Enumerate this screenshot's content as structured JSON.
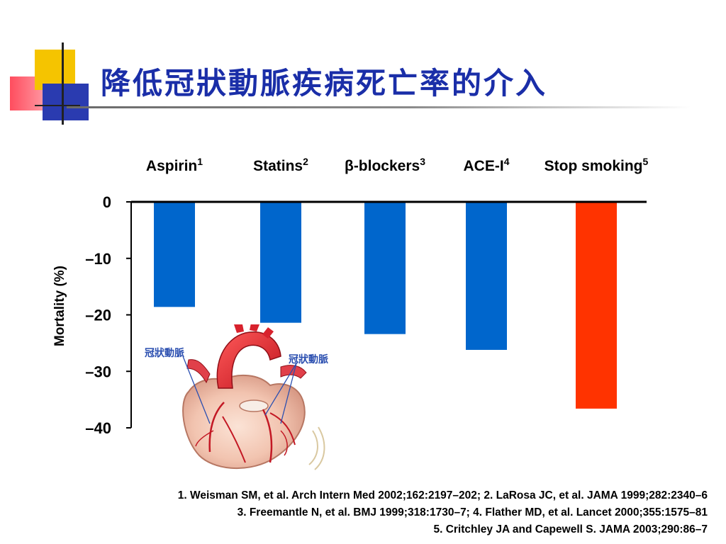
{
  "slide": {
    "title": "降低冠狀動脈疾病死亡率的介入"
  },
  "colors": {
    "title": "#1a2ea8",
    "bar_primary": "#0066cc",
    "bar_highlight": "#ff3300"
  },
  "chart_data": {
    "type": "bar",
    "title": "",
    "xlabel": "",
    "ylabel": "Mortality (%)",
    "ylim": [
      -40,
      0
    ],
    "yticks": [
      0,
      -10,
      -20,
      -30,
      -40
    ],
    "ytick_labels": [
      "0",
      "–10",
      "–20",
      "–30",
      "–40"
    ],
    "x_axis_position": "top",
    "grid": false,
    "categories": [
      {
        "label": "Aspirin",
        "sup": "1"
      },
      {
        "label": "Statins",
        "sup": "2"
      },
      {
        "label": "β-blockers",
        "sup": "3"
      },
      {
        "label": "ACE-I",
        "sup": "4"
      },
      {
        "label": "Stop smoking",
        "sup": "5"
      }
    ],
    "values": [
      -18.6,
      -21.4,
      -23.4,
      -26.2,
      -36.6
    ],
    "bar_colors": [
      "#0066cc",
      "#0066cc",
      "#0066cc",
      "#0066cc",
      "#ff3300"
    ]
  },
  "illustration": {
    "icon": "heart-illustration",
    "label_left": "冠狀動脈",
    "label_right": "冠狀動脈"
  },
  "references": [
    "1. Weisman SM, et al. Arch Intern Med 2002;162:2197–202; 2. LaRosa JC, et al. JAMA 1999;282:2340–6",
    "3. Freemantle N, et al. BMJ 1999;318:1730–7; 4. Flather MD, et al. Lancet 2000;355:1575–81",
    "5. Critchley JA and Capewell S. JAMA 2003;290:86–7"
  ]
}
